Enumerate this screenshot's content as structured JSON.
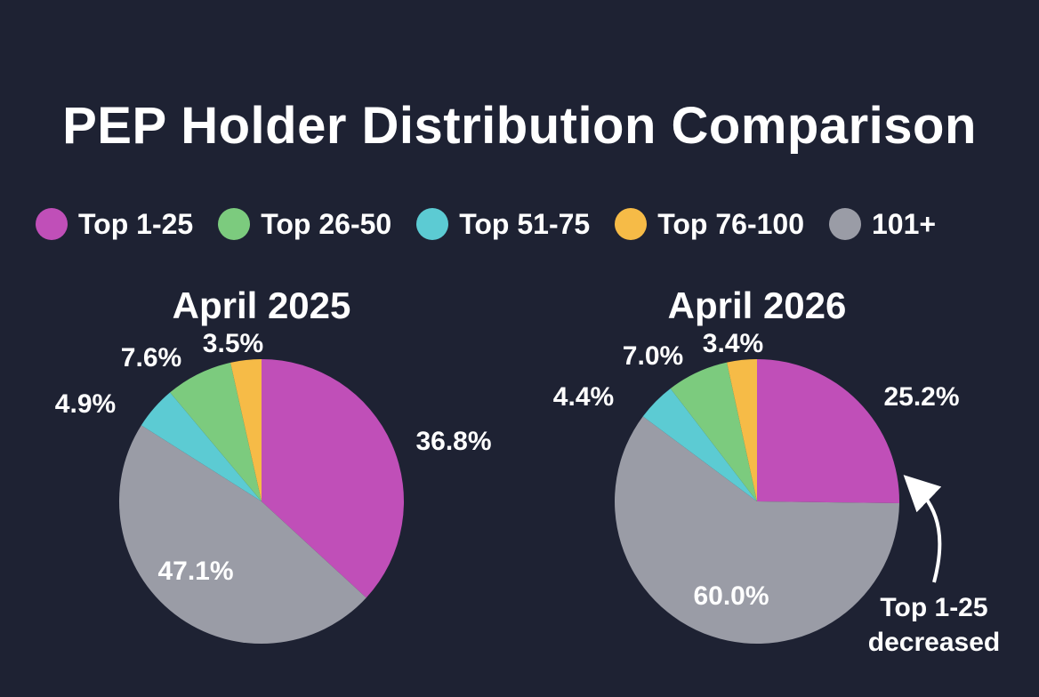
{
  "title": "PEP Holder Distribution Comparison",
  "legend": [
    {
      "label": "Top 1-25",
      "color": "#c04fb8"
    },
    {
      "label": "Top 26-50",
      "color": "#7ccb7e"
    },
    {
      "label": "Top 51-75",
      "color": "#5ccbd3"
    },
    {
      "label": "Top 76-100",
      "color": "#f6bb47"
    },
    {
      "label": "101+",
      "color": "#9a9ca6"
    }
  ],
  "annotation": {
    "line1": "Top 1-25",
    "line2": "decreased"
  },
  "chart_data": [
    {
      "type": "pie",
      "title": "April 2025",
      "categories": [
        "Top 1-25",
        "101+",
        "Top 51-75",
        "Top 26-50",
        "Top 76-100"
      ],
      "values": [
        36.8,
        47.1,
        4.9,
        7.6,
        3.5
      ],
      "labels": [
        "36.8%",
        "47.1%",
        "4.9%",
        "7.6%",
        "3.5%"
      ],
      "colors": [
        "#c04fb8",
        "#9a9ca6",
        "#5ccbd3",
        "#7ccb7e",
        "#f6bb47"
      ]
    },
    {
      "type": "pie",
      "title": "April 2026",
      "categories": [
        "Top 1-25",
        "101+",
        "Top 51-75",
        "Top 26-50",
        "Top 76-100"
      ],
      "values": [
        25.2,
        60.0,
        4.4,
        7.0,
        3.4
      ],
      "labels": [
        "25.2%",
        "60.0%",
        "4.4%",
        "7.0%",
        "3.4%"
      ],
      "colors": [
        "#c04fb8",
        "#9a9ca6",
        "#5ccbd3",
        "#7ccb7e",
        "#f6bb47"
      ]
    }
  ]
}
